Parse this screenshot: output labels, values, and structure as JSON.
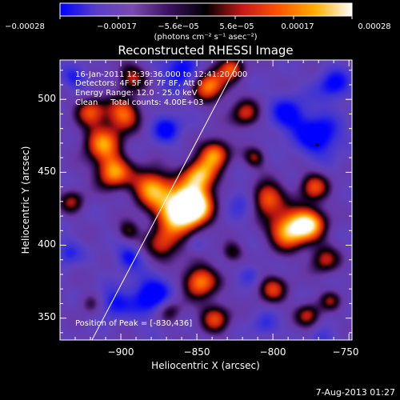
{
  "chart_data": {
    "type": "heatmap",
    "title": "Reconstructed RHESSI Image",
    "xlabel": "Heliocentric X (arcsec)",
    "ylabel": "Heliocentric Y (arcsec)",
    "xlim": [
      -940,
      -748
    ],
    "ylim": [
      335,
      527
    ],
    "x_ticks": [
      -900,
      -850,
      -800,
      -750
    ],
    "y_ticks": [
      350,
      400,
      450,
      500
    ],
    "x_tick_labels": [
      "−900",
      "−850",
      "−800",
      "−750"
    ],
    "y_tick_labels": [
      "350",
      "400",
      "450",
      "500"
    ],
    "colorbar": {
      "range": [
        -0.00028,
        0.00028
      ],
      "tick_labels": [
        "−0.00028",
        "−0.00017",
        "−5.6e−05",
        "5.6e−05",
        "0.00017",
        "0.00028"
      ],
      "unit_label": "(photons cm⁻² s⁻¹ asec⁻²)",
      "colors": [
        "#0000ff",
        "#5a3ec8",
        "#7a4ab0",
        "#3a1060",
        "#000000",
        "#c81818",
        "#ff5500",
        "#ffb000",
        "#ffffff"
      ]
    },
    "annotations": {
      "time": "16-Jan-2011 12:39:36.000 to 12:41:20.000",
      "detectors": "Detectors: 4F 5F 6F 7F 8F, Att 0",
      "energy": "Energy Range: 12.0 - 25.0 keV",
      "clean": "Clean     Total counts: 4.00E+03",
      "peak": "Position of Peak = [-830,436]"
    },
    "limb_line": [
      [
        -919,
        335
      ],
      [
        -822,
        527
      ]
    ],
    "blobs": [
      [
        -862,
        423,
        11,
        1.0
      ],
      [
        -852,
        428,
        9,
        0.9
      ],
      [
        -880,
        440,
        9,
        0.8
      ],
      [
        -848,
        448,
        8,
        0.85
      ],
      [
        -838,
        463,
        7,
        0.75
      ],
      [
        -872,
        400,
        8,
        0.55
      ],
      [
        -905,
        450,
        8,
        0.8
      ],
      [
        -912,
        470,
        9,
        0.75
      ],
      [
        -898,
        490,
        8,
        0.7
      ],
      [
        -920,
        492,
        7,
        0.6
      ],
      [
        -893,
        515,
        7,
        0.5
      ],
      [
        -842,
        510,
        8,
        0.8
      ],
      [
        -827,
        522,
        6,
        0.6
      ],
      [
        -818,
        490,
        7,
        0.55
      ],
      [
        -804,
        432,
        8,
        0.75
      ],
      [
        -790,
        410,
        9,
        0.9
      ],
      [
        -776,
        415,
        8,
        0.85
      ],
      [
        -773,
        440,
        7,
        0.6
      ],
      [
        -766,
        390,
        7,
        0.5
      ],
      [
        -800,
        370,
        7,
        0.55
      ],
      [
        -777,
        352,
        6,
        0.5
      ],
      [
        -762,
        362,
        5,
        0.4
      ],
      [
        -848,
        375,
        8,
        0.8
      ],
      [
        -838,
        350,
        7,
        0.6
      ],
      [
        -868,
        355,
        6,
        0.45
      ],
      [
        -827,
        395,
        5,
        0.4
      ],
      [
        -932,
        430,
        6,
        0.45
      ],
      [
        -895,
        410,
        5,
        0.4
      ],
      [
        -812,
        460,
        5,
        0.45
      ],
      [
        -920,
        360,
        5,
        0.3
      ]
    ],
    "dips": [
      [
        -880,
        365,
        10,
        1.0
      ],
      [
        -905,
        360,
        7,
        0.7
      ],
      [
        -770,
        475,
        10,
        1.0
      ],
      [
        -790,
        490,
        9,
        0.8
      ],
      [
        -860,
        520,
        9,
        0.9
      ],
      [
        -870,
        480,
        7,
        0.8
      ],
      [
        -820,
        430,
        7,
        0.6
      ],
      [
        -895,
        392,
        6,
        0.7
      ],
      [
        -805,
        345,
        6,
        0.5
      ],
      [
        -760,
        510,
        8,
        0.8
      ],
      [
        -930,
        515,
        6,
        0.6
      ],
      [
        -815,
        380,
        5,
        0.5
      ],
      [
        -935,
        395,
        6,
        0.6
      ],
      [
        -768,
        335,
        5,
        0.5
      ],
      [
        -850,
        400,
        4,
        0.4
      ]
    ]
  },
  "footer": {
    "date": "7-Aug-2013 01:27"
  }
}
